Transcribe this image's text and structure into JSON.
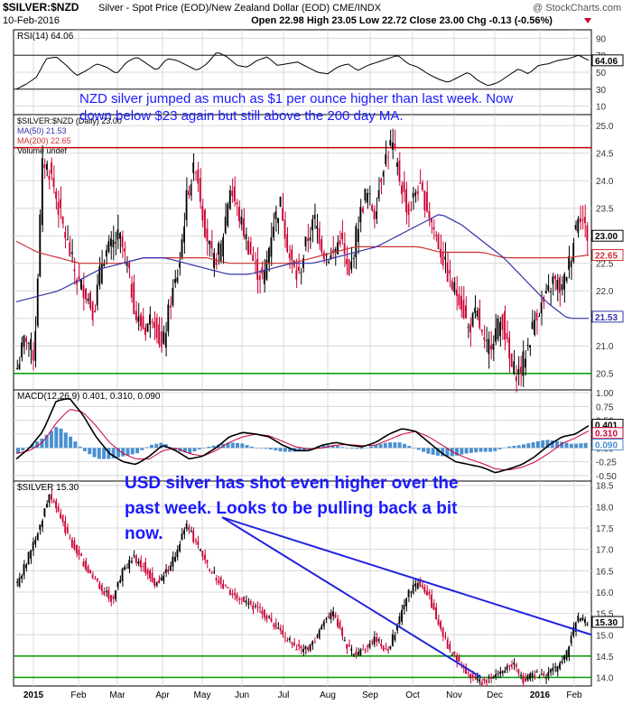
{
  "header": {
    "symbol_title": "$SILVER:$NZD",
    "description": "Silver - Spot Price (EOD)/New Zealand Dollar (EOD)",
    "exchange": "CME/INDX",
    "date": "10-Feb-2016",
    "copyright": "@ StockCharts.com",
    "quote": "Open 22.98  High 23.05  Low 22.72  Close 23.00  Chg -0.13 (-0.56%)"
  },
  "annotations": {
    "nzd_note": [
      "NZD silver jumped as much as $1 per ounce higher than last week. Now",
      "down below $23 again but still above the 200 day MA."
    ],
    "usd_note": [
      "USD silver has shot even higher over the",
      "past week. Looks to be pulling back a bit",
      "now."
    ]
  },
  "colors": {
    "up": "#000000",
    "down": "#cc0033",
    "ma50": "#3333aa",
    "ma200": "#cc3333",
    "support": "#009900",
    "resistance": "#cc0000",
    "trendline": "#2222dd",
    "annotation": "#1a1aff",
    "macd_hist": "#4a8fd1",
    "grid": "#d8d8d8"
  },
  "x_axis": {
    "labels": [
      "2015",
      "Feb",
      "Mar",
      "Apr",
      "May",
      "Jun",
      "Jul",
      "Aug",
      "Sep",
      "Oct",
      "Nov",
      "Dec",
      "2016",
      "Feb"
    ]
  },
  "chart_data": [
    {
      "type": "line",
      "panel": "RSI",
      "legend": "RSI(14) 64.06",
      "ylim": [
        0,
        100
      ],
      "ticks": [
        10,
        30,
        50,
        70,
        90
      ],
      "last_value_label": "64.06",
      "series": [
        {
          "name": "RSI(14)",
          "values": [
            30,
            36,
            44,
            66,
            68,
            58,
            46,
            52,
            60,
            56,
            48,
            62,
            68,
            60,
            52,
            66,
            64,
            58,
            52,
            60,
            74,
            68,
            58,
            56,
            64,
            68,
            58,
            60,
            62,
            56,
            50,
            48,
            56,
            60,
            52,
            58,
            62,
            66,
            70,
            60,
            56,
            48,
            42,
            38,
            44,
            50,
            40,
            34,
            38,
            46,
            54,
            48,
            58,
            60,
            64,
            66,
            70,
            64
          ]
        }
      ]
    },
    {
      "type": "candlestick",
      "panel": "price-nzd",
      "legend": [
        "$SILVER:$NZD (Daily) 23.00",
        "MA(50) 21.53",
        "MA(200) 22.65",
        "Volume undef"
      ],
      "ylim": [
        20.2,
        25.2
      ],
      "ticks": [
        20.5,
        21.0,
        21.5,
        22.0,
        22.5,
        23.0,
        23.5,
        24.0,
        24.5,
        25.0
      ],
      "last_value_labels": {
        "close": "23.00",
        "ma200": "22.65",
        "ma50": "21.53"
      },
      "close_series": [
        20.6,
        21.2,
        20.8,
        24.4,
        24.1,
        23.4,
        22.8,
        22.2,
        22.0,
        21.6,
        22.6,
        22.8,
        23.0,
        22.4,
        21.5,
        21.3,
        21.6,
        20.9,
        21.8,
        22.4,
        23.8,
        24.3,
        23.2,
        22.5,
        22.8,
        23.9,
        23.4,
        22.9,
        22.4,
        22.2,
        23.2,
        23.6,
        22.6,
        22.2,
        22.9,
        23.3,
        22.7,
        22.6,
        23.0,
        22.2,
        23.2,
        23.8,
        23.4,
        24.3,
        24.7,
        24.0,
        23.4,
        23.9,
        23.6,
        23.1,
        22.6,
        22.1,
        21.9,
        21.3,
        21.6,
        20.9,
        21.2,
        21.5,
        20.6,
        20.5,
        21.0,
        21.6,
        21.8,
        22.2,
        22.0,
        22.6,
        23.5,
        23.0
      ],
      "ma50": [
        21.8,
        21.9,
        22.0,
        22.2,
        22.4,
        22.5,
        22.6,
        22.6,
        22.5,
        22.4,
        22.3,
        22.3,
        22.4,
        22.5,
        22.5,
        22.6,
        22.7,
        22.8,
        23.0,
        23.2,
        23.4,
        23.2,
        22.9,
        22.6,
        22.2,
        21.8,
        21.5,
        21.5
      ],
      "ma200": [
        22.9,
        22.7,
        22.6,
        22.5,
        22.5,
        22.5,
        22.6,
        22.6,
        22.6,
        22.6,
        22.5,
        22.5,
        22.5,
        22.5,
        22.6,
        22.7,
        22.8,
        22.8,
        22.8,
        22.8,
        22.7,
        22.7,
        22.7,
        22.6,
        22.6,
        22.6,
        22.6,
        22.65
      ],
      "support_level": 20.5,
      "resistance_level": 24.6
    },
    {
      "type": "line",
      "panel": "MACD",
      "legend": "MACD(12,26,9) 0.401, 0.310, 0.090",
      "ylim": [
        -0.6,
        1.05
      ],
      "ticks": [
        -0.5,
        -0.25,
        0.0,
        0.25,
        0.5,
        0.75,
        1.0
      ],
      "last_value_labels": [
        "0.401",
        "0.310",
        "0.090"
      ],
      "series": [
        {
          "name": "MACD",
          "values": [
            -0.2,
            0.0,
            0.3,
            0.85,
            0.9,
            0.6,
            0.2,
            -0.1,
            -0.25,
            -0.3,
            -0.15,
            0.05,
            -0.05,
            -0.2,
            -0.15,
            0.0,
            0.2,
            0.28,
            0.25,
            0.2,
            0.05,
            -0.05,
            -0.05,
            0.05,
            0.1,
            0.05,
            0.02,
            0.1,
            0.25,
            0.35,
            0.3,
            0.1,
            -0.1,
            -0.25,
            -0.3,
            -0.35,
            -0.45,
            -0.38,
            -0.3,
            -0.15,
            0.05,
            0.2,
            0.25,
            0.401
          ]
        },
        {
          "name": "Signal",
          "values": [
            -0.1,
            -0.05,
            0.1,
            0.45,
            0.7,
            0.65,
            0.4,
            0.1,
            -0.1,
            -0.2,
            -0.2,
            -0.05,
            0.0,
            -0.1,
            -0.15,
            -0.05,
            0.1,
            0.2,
            0.25,
            0.22,
            0.12,
            0.02,
            -0.02,
            0.0,
            0.05,
            0.06,
            0.04,
            0.05,
            0.15,
            0.25,
            0.3,
            0.2,
            0.05,
            -0.1,
            -0.2,
            -0.28,
            -0.38,
            -0.4,
            -0.35,
            -0.25,
            -0.1,
            0.08,
            0.18,
            0.31
          ]
        },
        {
          "name": "Histogram",
          "values": [
            -0.1,
            0.05,
            0.2,
            0.4,
            0.2,
            -0.05,
            -0.2,
            -0.2,
            -0.15,
            -0.1,
            0.05,
            0.1,
            -0.05,
            -0.1,
            0.0,
            0.05,
            0.1,
            0.08,
            0.0,
            -0.02,
            -0.07,
            -0.07,
            -0.03,
            0.05,
            0.05,
            -0.01,
            -0.02,
            0.05,
            0.1,
            0.1,
            0.0,
            -0.1,
            -0.15,
            -0.15,
            -0.1,
            -0.07,
            -0.07,
            0.02,
            0.05,
            0.1,
            0.15,
            0.12,
            0.07,
            0.09
          ]
        }
      ]
    },
    {
      "type": "candlestick",
      "panel": "price-usd",
      "legend": "$SILVER 15.30",
      "ylim": [
        13.8,
        18.6
      ],
      "ticks": [
        14.0,
        14.5,
        15.0,
        15.5,
        16.0,
        16.5,
        17.0,
        17.5,
        18.0,
        18.5
      ],
      "last_value_label": "15.30",
      "close_series": [
        16.2,
        16.8,
        17.4,
        18.3,
        17.8,
        17.2,
        16.8,
        16.4,
        16.1,
        15.8,
        16.5,
        16.8,
        16.6,
        16.2,
        16.4,
        16.9,
        17.6,
        17.1,
        16.6,
        16.3,
        16.0,
        15.9,
        15.7,
        15.6,
        15.3,
        15.0,
        14.8,
        14.6,
        14.8,
        15.3,
        15.5,
        14.8,
        14.5,
        14.7,
        14.9,
        14.6,
        15.2,
        16.0,
        16.2,
        15.9,
        15.2,
        14.6,
        14.3,
        14.0,
        13.9,
        14.0,
        14.2,
        14.3,
        13.9,
        14.1,
        14.0,
        14.2,
        14.5,
        15.4,
        15.3
      ],
      "support_levels": [
        14.5,
        14.0
      ],
      "trendlines": [
        {
          "from": {
            "x": "May",
            "y": 17.75
          },
          "to": {
            "x": "Feb",
            "y": 15.0
          }
        },
        {
          "from": {
            "x": "May",
            "y": 17.75
          },
          "to": {
            "x": "Dec",
            "y": 14.0
          }
        }
      ]
    }
  ]
}
